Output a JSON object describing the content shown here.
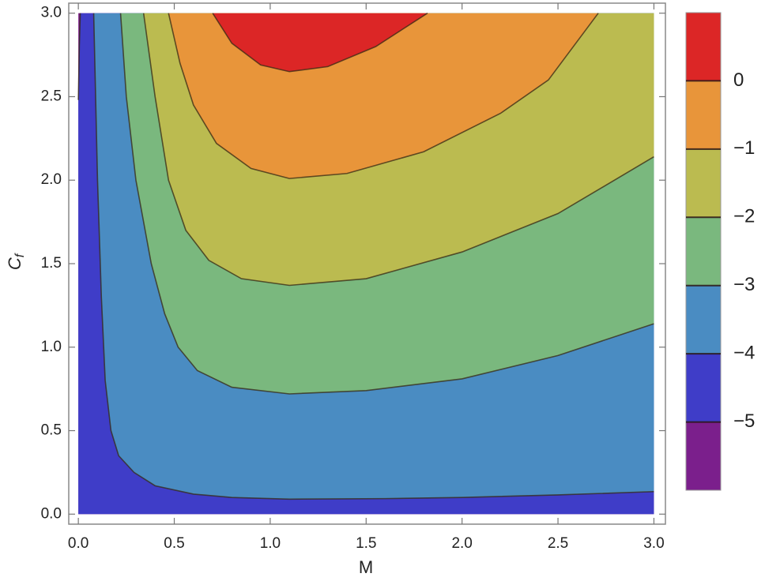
{
  "chart_data": {
    "type": "contour",
    "xlabel": "M",
    "ylabel": {
      "main": "C",
      "sub": "f"
    },
    "xlim": [
      -0.05,
      3.06
    ],
    "ylim": [
      -0.06,
      3.06
    ],
    "xticks": [
      {
        "value": 0,
        "label": "0.0"
      },
      0.5,
      {
        "value": 1,
        "label": "1.0"
      },
      1.5,
      {
        "value": 2,
        "label": "2.0"
      },
      2.5,
      {
        "value": 3,
        "label": "3.0"
      }
    ],
    "yticks": [
      {
        "value": 0,
        "label": "0.0"
      },
      0.5,
      {
        "value": 1,
        "label": "1.0"
      },
      1.5,
      {
        "value": 2,
        "label": "2.0"
      },
      2.5,
      {
        "value": 3,
        "label": "3.0"
      }
    ],
    "domain": {
      "x": [
        0,
        3
      ],
      "y": [
        0,
        3
      ]
    },
    "colorbar": {
      "clim": [
        -6,
        1
      ],
      "ticks": [
        {
          "value": 0,
          "label": "0"
        },
        {
          "value": -1,
          "label": "−1"
        },
        {
          "value": -2,
          "label": "−2"
        },
        {
          "value": -3,
          "label": "−3"
        },
        {
          "value": -4,
          "label": "−4"
        },
        {
          "value": -5,
          "label": "−5"
        }
      ],
      "colors": [
        "#7b1f8c",
        "#3f3dc8",
        "#4a8cc2",
        "#7ab87e",
        "#bbbb50",
        "#e8953a",
        "#dc2626"
      ]
    },
    "contours": [
      {
        "level": -5,
        "x": [
          0.01,
          0.005,
          0
        ],
        "y": [
          3,
          2.8,
          2.48
        ]
      },
      {
        "level": -4,
        "x": [
          0.08,
          0.1,
          0.12,
          0.14,
          0.17,
          0.21,
          0.29,
          0.4,
          0.6,
          0.8,
          1.1,
          1.6,
          2.0,
          2.5,
          3.0
        ],
        "y": [
          3,
          2,
          1.3,
          0.8,
          0.5,
          0.35,
          0.25,
          0.17,
          0.12,
          0.1,
          0.09,
          0.093,
          0.1,
          0.115,
          0.135
        ]
      },
      {
        "level": -3,
        "x": [
          0.22,
          0.25,
          0.3,
          0.38,
          0.45,
          0.52,
          0.62,
          0.8,
          1.1,
          1.5,
          2.0,
          2.5,
          3.0
        ],
        "y": [
          3,
          2.5,
          2.0,
          1.5,
          1.2,
          1.0,
          0.86,
          0.76,
          0.72,
          0.74,
          0.81,
          0.95,
          1.14
        ]
      },
      {
        "level": -2,
        "x": [
          0.34,
          0.4,
          0.47,
          0.56,
          0.68,
          0.85,
          1.1,
          1.5,
          2.0,
          2.5,
          3.0
        ],
        "y": [
          3,
          2.5,
          2.0,
          1.7,
          1.52,
          1.41,
          1.37,
          1.41,
          1.57,
          1.8,
          2.14
        ]
      },
      {
        "level": -1,
        "x": [
          0.47,
          0.53,
          0.6,
          0.72,
          0.9,
          1.1,
          1.4,
          1.8,
          2.2,
          2.45,
          2.71
        ],
        "y": [
          3,
          2.7,
          2.45,
          2.22,
          2.07,
          2.01,
          2.04,
          2.17,
          2.4,
          2.6,
          3
        ]
      },
      {
        "level": 0,
        "x": [
          0.7,
          0.8,
          0.95,
          1.1,
          1.3,
          1.55,
          1.82
        ],
        "y": [
          3,
          2.82,
          2.69,
          2.65,
          2.68,
          2.8,
          3
        ]
      }
    ]
  }
}
